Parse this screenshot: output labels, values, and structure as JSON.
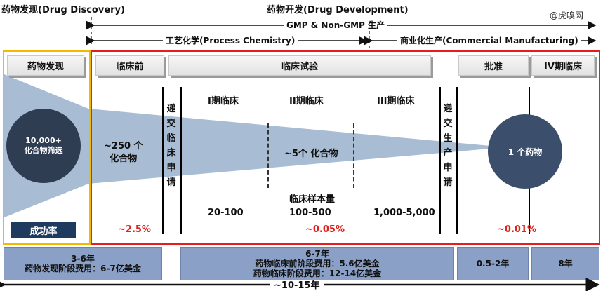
{
  "header": {
    "discovery_title": "药物发现(Drug Discovery)",
    "development_title": "药物开发(Drug Development)",
    "watermark": "@虎嗅网",
    "gmp_label": "GMP & Non-GMP 生产",
    "process_chem_label": "工艺化学(Process Chemistry)",
    "commercial_label": "商业化生产(Commercial Manufacturing)"
  },
  "stages": {
    "discovery": "药物发现",
    "preclinical": "临床前",
    "clinical": "临床试验",
    "approval": "批准",
    "phase4": "IV期临床"
  },
  "left_panel": {
    "circle_line1": "10,000+",
    "circle_line2": "化合物筛选",
    "success_rate": "成功率"
  },
  "funnel": {
    "preclinical_count_line1": "~250 个",
    "preclinical_count_line2": "化合物",
    "submit_clinical": [
      "递",
      "交",
      "临",
      "床",
      "申",
      "请"
    ],
    "clinical_count": "~5个 化合物",
    "submit_production": [
      "递",
      "交",
      "生",
      "产",
      "申",
      "请"
    ],
    "final_drug": "1 个药物"
  },
  "phases": {
    "phase1": "I期临床",
    "phase2": "II期临床",
    "phase3": "III期临床"
  },
  "sample": {
    "label": "临床样本量",
    "phase1": "20-100",
    "phase2": "100-500",
    "phase3": "1,000-5,000"
  },
  "rates": {
    "preclinical": "~2.5%",
    "clinical": "~0.05%",
    "final": "~0.01%"
  },
  "bottom": {
    "discovery_line1": "3-6年",
    "discovery_line2": "药物发现阶段费用：6-7亿美金",
    "clinical_line1": "6-7年",
    "clinical_line2": "药物临床前阶段费用：5.6亿美金",
    "clinical_line3": "药物临床阶段费用：12-14亿美金",
    "approval": "0.5-2年",
    "phase4": "8年",
    "total": "~10-15年"
  },
  "colors": {
    "discovery_border": "#f5b800",
    "development_border": "#e41e1e",
    "funnel": "#a8bcd4",
    "circle": "#2f3d52",
    "drug_circle": "#3b4f6c",
    "success_box": "#1f3a5f",
    "rate_text": "#e0201b",
    "bottom_box": "#8aa0c6"
  }
}
